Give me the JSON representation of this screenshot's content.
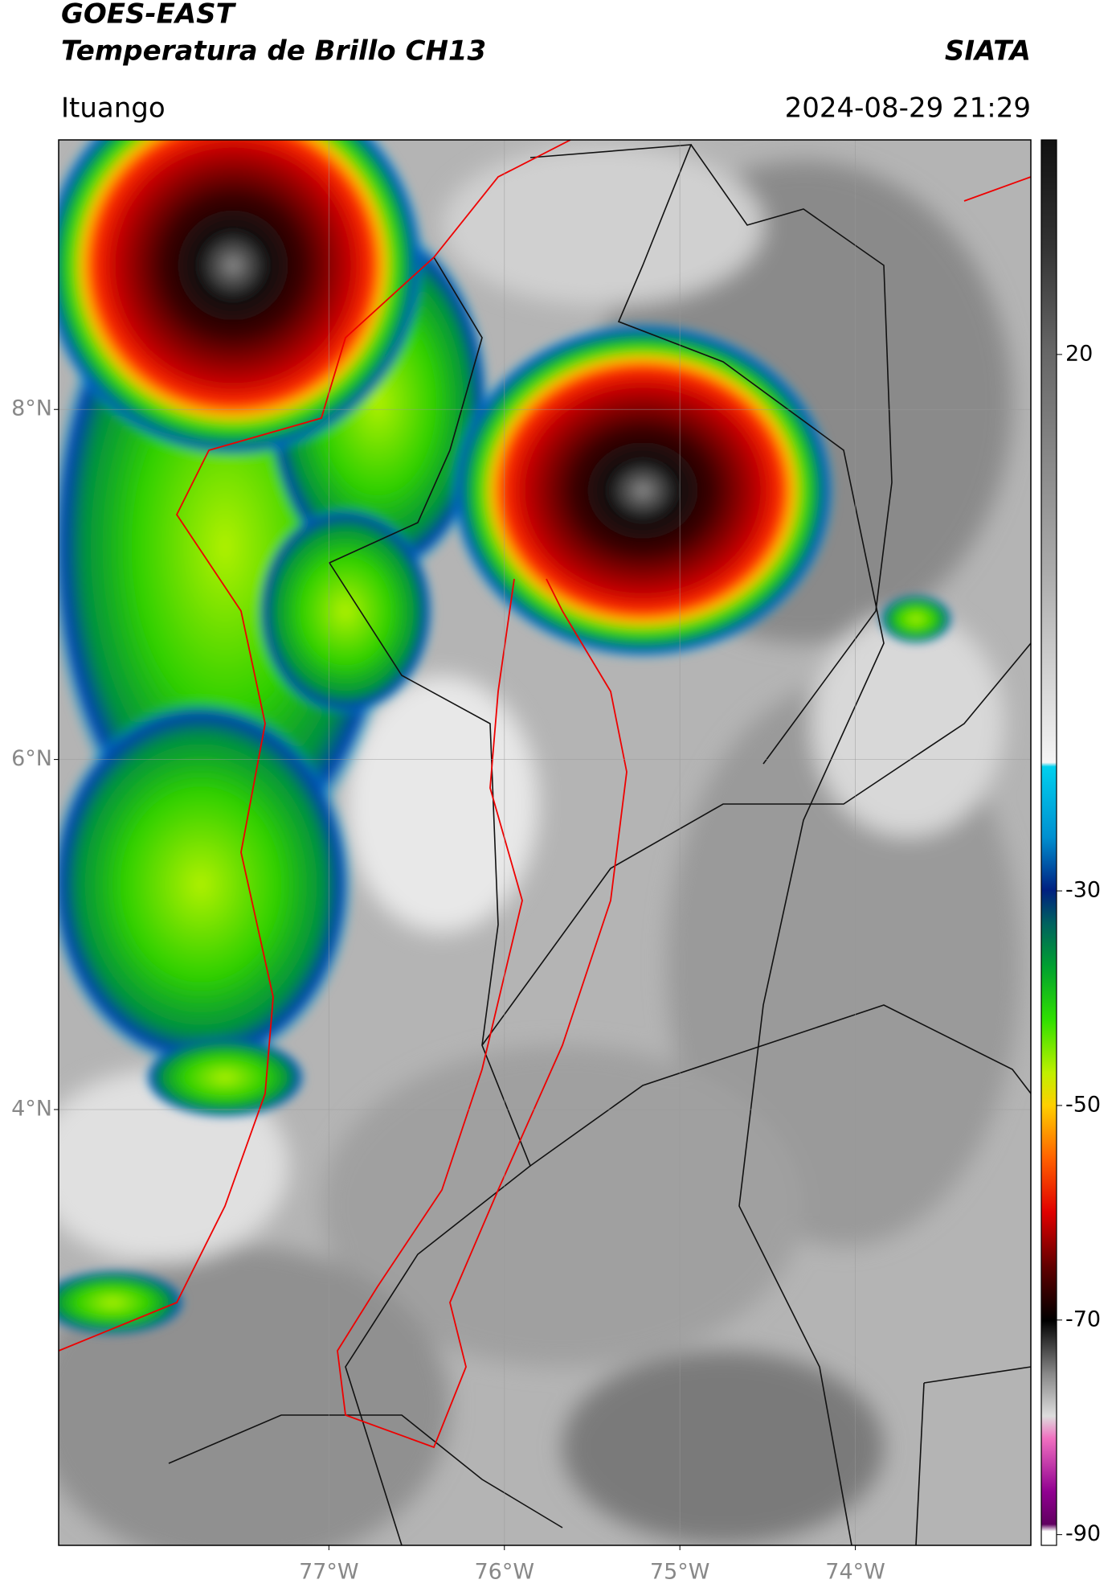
{
  "header": {
    "title": "GOES-EAST",
    "subtitle": "Temperatura de Brillo CH13",
    "agency": "SIATA",
    "location": "Ituango",
    "datetime": "2024-08-29 21:29"
  },
  "map": {
    "xlim": [
      -78.54,
      -73.0
    ],
    "ylim": [
      1.51,
      9.54
    ],
    "xticks": [
      {
        "value": -77,
        "label": "77°W"
      },
      {
        "value": -76,
        "label": "76°W"
      },
      {
        "value": -75,
        "label": "75°W"
      },
      {
        "value": -74,
        "label": "74°W"
      }
    ],
    "yticks": [
      {
        "value": 4,
        "label": "4°N"
      },
      {
        "value": 6,
        "label": "6°N"
      },
      {
        "value": 8,
        "label": "8°N"
      }
    ],
    "grid": true
  },
  "colorbar": {
    "lim": [
      -91,
      40
    ],
    "ticks": [
      -90,
      -70,
      -50,
      -30,
      20
    ]
  }
}
